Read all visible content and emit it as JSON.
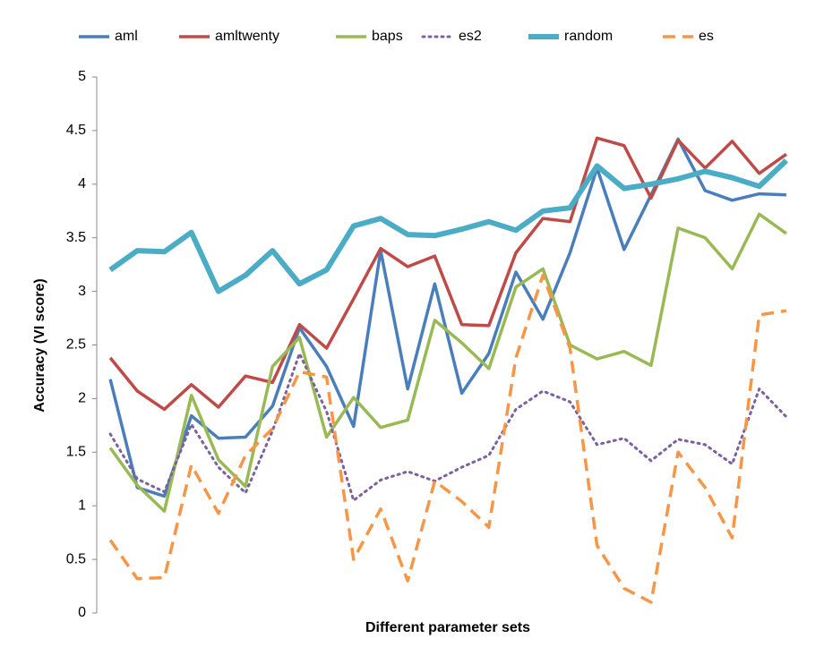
{
  "chart_data": {
    "type": "line",
    "xlabel": "Different parameter sets",
    "ylabel": "Accuracy (VI score)",
    "categories": [
      null,
      null,
      null,
      null,
      null,
      null,
      null,
      null,
      null,
      null,
      null,
      null,
      null,
      null,
      null,
      null,
      null,
      null,
      null,
      null,
      null,
      null,
      null,
      null,
      null,
      null
    ],
    "ylim": [
      0,
      5
    ],
    "yticks": [
      0,
      0.5,
      1,
      1.5,
      2,
      2.5,
      3,
      3.5,
      4,
      4.5,
      5
    ],
    "grid": false,
    "legend": "top",
    "series": [
      {
        "name": "aml",
        "color": "#4a7ebb",
        "style": "solid",
        "line_width": 3.5,
        "values": [
          2.18,
          1.17,
          1.09,
          1.84,
          1.63,
          1.64,
          1.93,
          2.66,
          2.3,
          1.74,
          3.38,
          2.09,
          3.07,
          2.05,
          2.42,
          3.18,
          2.74,
          3.36,
          4.15,
          3.39,
          3.9,
          4.42,
          3.94,
          3.85,
          3.91,
          3.9
        ]
      },
      {
        "name": "amltwenty",
        "color": "#be4b48",
        "style": "solid",
        "line_width": 3.5,
        "values": [
          2.38,
          2.07,
          1.9,
          2.13,
          1.92,
          2.21,
          2.15,
          2.69,
          2.47,
          2.93,
          3.4,
          3.23,
          3.33,
          2.69,
          2.68,
          3.36,
          3.68,
          3.65,
          4.43,
          4.36,
          3.87,
          4.41,
          4.15,
          4.4,
          4.1,
          4.28
        ]
      },
      {
        "name": "baps",
        "color": "#98b954",
        "style": "solid",
        "line_width": 3.5,
        "values": [
          1.54,
          1.19,
          0.95,
          2.03,
          1.43,
          1.18,
          2.3,
          2.57,
          1.64,
          2.01,
          1.73,
          1.8,
          2.73,
          2.52,
          2.28,
          3.04,
          3.21,
          2.5,
          2.37,
          2.44,
          2.31,
          3.59,
          3.5,
          3.21,
          3.72,
          3.54
        ]
      },
      {
        "name": "es2",
        "color": "#7d60a0",
        "style": "dotted",
        "line_width": 3,
        "values": [
          1.67,
          1.25,
          1.13,
          1.76,
          1.36,
          1.12,
          1.7,
          2.42,
          1.88,
          1.05,
          1.24,
          1.32,
          1.23,
          1.36,
          1.47,
          1.9,
          2.07,
          1.97,
          1.57,
          1.63,
          1.42,
          1.62,
          1.57,
          1.39,
          2.09,
          1.83
        ]
      },
      {
        "name": "random",
        "color": "#4bacc6",
        "style": "solid",
        "line_width": 6,
        "values": [
          3.2,
          3.38,
          3.37,
          3.55,
          3.0,
          3.15,
          3.38,
          3.07,
          3.2,
          3.61,
          3.68,
          3.53,
          3.52,
          3.58,
          3.65,
          3.57,
          3.75,
          3.78,
          4.17,
          3.96,
          4.0,
          4.05,
          4.12,
          4.06,
          3.98,
          4.22
        ]
      },
      {
        "name": "es",
        "color": "#f79646",
        "style": "dashed",
        "line_width": 3.5,
        "values": [
          0.68,
          0.32,
          0.33,
          1.38,
          0.93,
          1.47,
          1.72,
          2.25,
          2.2,
          0.5,
          0.97,
          0.3,
          1.23,
          1.04,
          0.8,
          2.38,
          3.15,
          2.47,
          0.63,
          0.23,
          0.1,
          1.5,
          1.17,
          0.7,
          2.78,
          2.82
        ]
      }
    ]
  }
}
